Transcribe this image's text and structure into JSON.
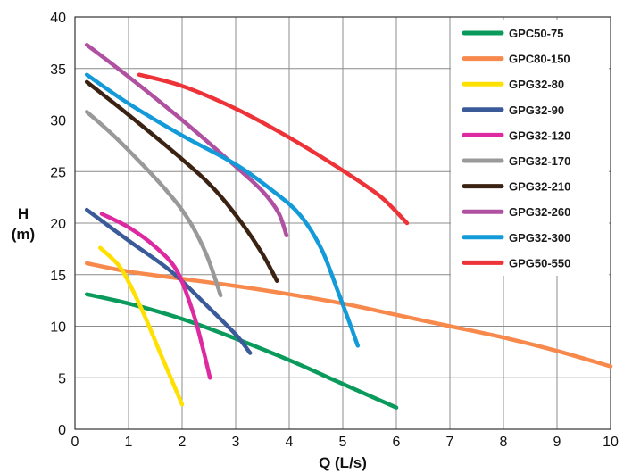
{
  "chart_data": {
    "type": "line",
    "title": "",
    "xlabel": "Q (L/s)",
    "ylabel_line1": "H",
    "ylabel_line2": "(m)",
    "xlim": [
      0,
      10
    ],
    "ylim": [
      0,
      40
    ],
    "x_ticks": [
      "0",
      "1",
      "2",
      "3",
      "4",
      "5",
      "6",
      "7",
      "8",
      "9",
      "10"
    ],
    "y_ticks": [
      "0",
      "5",
      "10",
      "15",
      "20",
      "25",
      "30",
      "35",
      "40"
    ],
    "grid": true,
    "legend_position": "top-right",
    "series": [
      {
        "name": "GPC50-75",
        "color": "#0a9a5c",
        "points": [
          [
            0.22,
            13.1
          ],
          [
            1.0,
            12.2
          ],
          [
            2.0,
            10.7
          ],
          [
            3.0,
            8.8
          ],
          [
            4.0,
            6.7
          ],
          [
            5.0,
            4.4
          ],
          [
            6.0,
            2.1
          ]
        ]
      },
      {
        "name": "GPC80-150",
        "color": "#f7894d",
        "points": [
          [
            0.22,
            16.1
          ],
          [
            1.0,
            15.3
          ],
          [
            2.0,
            14.6
          ],
          [
            3.0,
            13.9
          ],
          [
            4.0,
            13.1
          ],
          [
            5.0,
            12.2
          ],
          [
            6.0,
            11.1
          ],
          [
            7.0,
            10.0
          ],
          [
            8.0,
            8.9
          ],
          [
            9.0,
            7.6
          ],
          [
            10.0,
            6.1
          ]
        ]
      },
      {
        "name": "GPG32-80",
        "color": "#ffe000",
        "points": [
          [
            0.47,
            17.6
          ],
          [
            0.8,
            16.0
          ],
          [
            1.0,
            14.3
          ],
          [
            1.3,
            11.0
          ],
          [
            1.6,
            7.3
          ],
          [
            2.0,
            2.4
          ]
        ]
      },
      {
        "name": "GPG32-90",
        "color": "#3a5a9a",
        "points": [
          [
            0.22,
            21.3
          ],
          [
            1.0,
            18.3
          ],
          [
            1.8,
            15.3
          ],
          [
            2.5,
            11.8
          ],
          [
            3.0,
            9.2
          ],
          [
            3.27,
            7.4
          ]
        ]
      },
      {
        "name": "GPG32-120",
        "color": "#dd2aa0",
        "points": [
          [
            0.5,
            20.9
          ],
          [
            1.0,
            19.6
          ],
          [
            1.5,
            17.7
          ],
          [
            1.9,
            15.4
          ],
          [
            2.2,
            11.4
          ],
          [
            2.38,
            8.0
          ],
          [
            2.52,
            5.0
          ]
        ]
      },
      {
        "name": "GPG32-170",
        "color": "#999999",
        "points": [
          [
            0.22,
            30.8
          ],
          [
            0.7,
            28.6
          ],
          [
            1.2,
            26.0
          ],
          [
            1.7,
            23.2
          ],
          [
            2.1,
            20.5
          ],
          [
            2.45,
            17.0
          ],
          [
            2.72,
            13.0
          ]
        ]
      },
      {
        "name": "GPG32-210",
        "color": "#3b2314",
        "points": [
          [
            0.22,
            33.7
          ],
          [
            1.0,
            30.5
          ],
          [
            2.0,
            26.2
          ],
          [
            2.6,
            23.3
          ],
          [
            3.1,
            20.1
          ],
          [
            3.5,
            17.0
          ],
          [
            3.77,
            14.4
          ]
        ]
      },
      {
        "name": "GPG32-260",
        "color": "#b050a0",
        "points": [
          [
            0.22,
            37.3
          ],
          [
            1.0,
            34.2
          ],
          [
            2.0,
            30.0
          ],
          [
            3.0,
            25.5
          ],
          [
            3.5,
            23.1
          ],
          [
            3.8,
            21.0
          ],
          [
            3.95,
            18.8
          ]
        ]
      },
      {
        "name": "GPG32-300",
        "color": "#139ad8",
        "points": [
          [
            0.22,
            34.4
          ],
          [
            1.0,
            31.6
          ],
          [
            2.0,
            28.5
          ],
          [
            3.0,
            25.7
          ],
          [
            3.7,
            23.1
          ],
          [
            4.2,
            20.8
          ],
          [
            4.6,
            17.5
          ],
          [
            4.9,
            13.5
          ],
          [
            5.15,
            10.0
          ],
          [
            5.28,
            8.1
          ]
        ]
      },
      {
        "name": "GPG50-550",
        "color": "#ee3338",
        "points": [
          [
            1.2,
            34.4
          ],
          [
            2.0,
            33.3
          ],
          [
            3.0,
            31.1
          ],
          [
            4.0,
            28.3
          ],
          [
            5.0,
            25.1
          ],
          [
            5.7,
            22.6
          ],
          [
            6.2,
            20.0
          ]
        ]
      }
    ]
  }
}
